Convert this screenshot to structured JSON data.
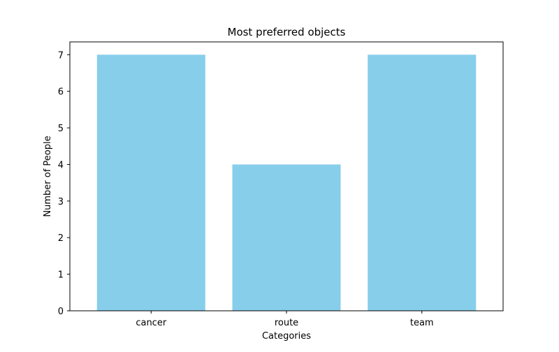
{
  "chart_data": {
    "type": "bar",
    "title": "Most preferred objects",
    "xlabel": "Categories",
    "ylabel": "Number of People",
    "categories": [
      "cancer",
      "route",
      "team"
    ],
    "values": [
      7,
      4,
      7
    ],
    "ylim": [
      0,
      7.35
    ],
    "yticks": [
      0,
      1,
      2,
      3,
      4,
      5,
      6,
      7
    ],
    "bar_color": "#87ceeb",
    "grid": false,
    "legend": "none"
  }
}
